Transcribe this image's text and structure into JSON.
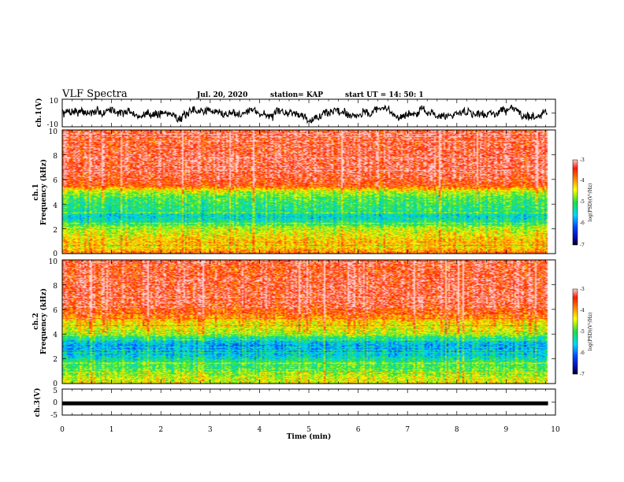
{
  "header": {
    "title": "VLF Spectra",
    "date": "Jul. 20, 2020",
    "station": "station= KAP",
    "start": "start UT = 14: 50: 1"
  },
  "chart_data": [
    {
      "type": "line",
      "panel": "ch1-waveform",
      "ylabel": "ch.1(V)",
      "ylim": [
        -10,
        10
      ],
      "yticks": [
        "10",
        "-10"
      ],
      "xlim": [
        0,
        10
      ],
      "note_values": "noisy signal centered near 0 V spanning about -6 to +8 V over 0-9.8 min"
    },
    {
      "type": "heatmap",
      "panel": "ch1-spectrogram",
      "ylabel": "ch.1",
      "ylabel2": "Frequency (kHz)",
      "ylim": [
        0,
        10
      ],
      "yticks": [
        "0",
        "2",
        "4",
        "6",
        "8",
        "10"
      ],
      "xlim": [
        0,
        10
      ],
      "data_end_min": 9.85,
      "colorbar": {
        "label": "log(PSD)(V²/Hz)",
        "range": [
          -7,
          -3
        ],
        "ticks": [
          "-3",
          "-4",
          "-5",
          "-6",
          "-7"
        ]
      },
      "band_profile_kHz": [
        [
          0.0,
          -3.8
        ],
        [
          0.5,
          -4.3
        ],
        [
          1.0,
          -4.2
        ],
        [
          1.5,
          -4.4
        ],
        [
          2.0,
          -4.6
        ],
        [
          2.5,
          -5.2
        ],
        [
          3.0,
          -5.5
        ],
        [
          3.5,
          -5.2
        ],
        [
          4.0,
          -5.1
        ],
        [
          4.5,
          -5.0
        ],
        [
          5.0,
          -4.6
        ],
        [
          5.5,
          -3.6
        ],
        [
          6.0,
          -3.5
        ],
        [
          7.0,
          -3.4
        ],
        [
          8.0,
          -3.4
        ],
        [
          9.0,
          -3.5
        ],
        [
          10.0,
          -3.5
        ]
      ]
    },
    {
      "type": "heatmap",
      "panel": "ch2-spectrogram",
      "ylabel": "ch.2",
      "ylabel2": "Frequency (kHz)",
      "ylim": [
        0,
        10
      ],
      "yticks": [
        "0",
        "2",
        "4",
        "6",
        "8",
        "10"
      ],
      "xlim": [
        0,
        10
      ],
      "data_end_min": 9.85,
      "colorbar": {
        "label": "log(PSD)(V²/Hz)",
        "range": [
          -7,
          -3
        ],
        "ticks": [
          "-3",
          "-4",
          "-5",
          "-6",
          "-7"
        ]
      },
      "band_profile_kHz": [
        [
          0.0,
          -4.4
        ],
        [
          0.5,
          -4.5
        ],
        [
          1.0,
          -4.9
        ],
        [
          1.5,
          -5.0
        ],
        [
          2.0,
          -5.3
        ],
        [
          2.5,
          -5.7
        ],
        [
          3.0,
          -5.8
        ],
        [
          3.5,
          -5.4
        ],
        [
          4.0,
          -4.7
        ],
        [
          4.5,
          -4.4
        ],
        [
          5.0,
          -4.2
        ],
        [
          5.5,
          -3.8
        ],
        [
          6.0,
          -3.6
        ],
        [
          7.0,
          -3.4
        ],
        [
          8.0,
          -3.4
        ],
        [
          9.0,
          -3.5
        ],
        [
          10.0,
          -3.5
        ]
      ]
    },
    {
      "type": "line",
      "panel": "ch3-waveform",
      "ylabel": "ch.3(V)",
      "ylim": [
        -5,
        5
      ],
      "yticks": [
        "5",
        "0",
        "-5"
      ],
      "xlim": [
        0,
        10
      ],
      "note_values": "nearly flat trace near -0.5 V with thickness about 0.5 V over 0-9.8 min"
    }
  ],
  "xaxis": {
    "label": "Time (min)",
    "ticks": [
      "0",
      "1",
      "2",
      "3",
      "4",
      "5",
      "6",
      "7",
      "8",
      "9",
      "10"
    ]
  }
}
